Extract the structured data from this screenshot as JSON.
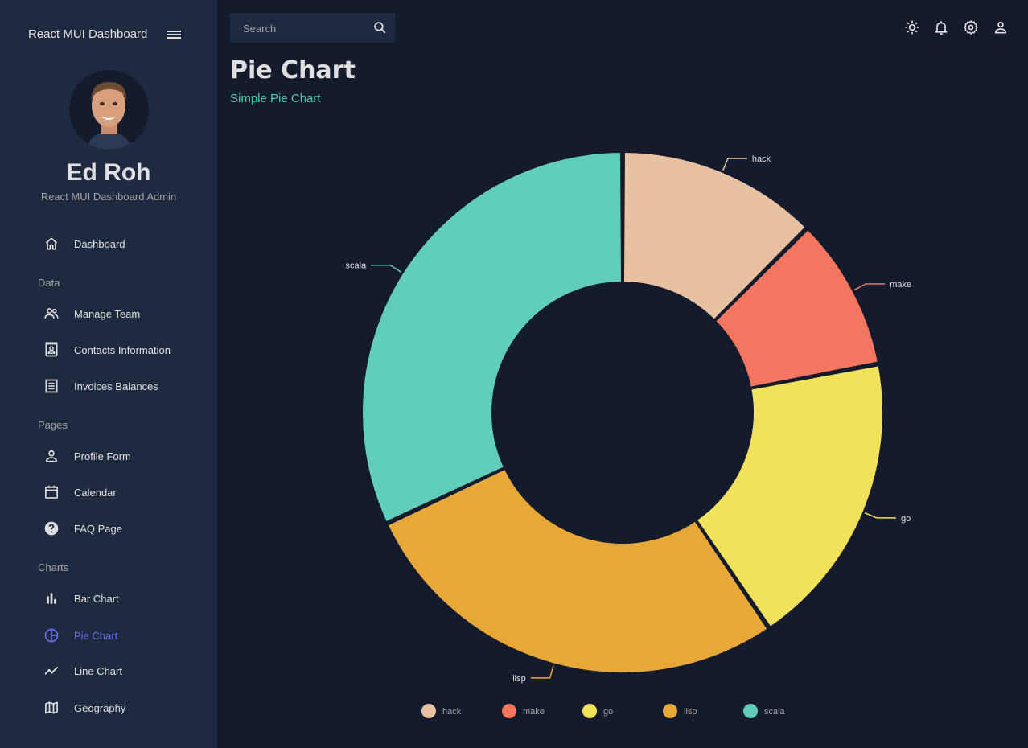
{
  "sidebar": {
    "brand": "React MUI Dashboard",
    "user_name": "Ed Roh",
    "user_role": "React MUI Dashboard Admin",
    "items": [
      {
        "label": "Dashboard",
        "icon": "home-icon"
      },
      {
        "label": "Manage Team",
        "icon": "people-icon"
      },
      {
        "label": "Contacts Information",
        "icon": "contacts-icon"
      },
      {
        "label": "Invoices Balances",
        "icon": "receipt-icon"
      },
      {
        "label": "Profile Form",
        "icon": "person-icon"
      },
      {
        "label": "Calendar",
        "icon": "calendar-icon"
      },
      {
        "label": "FAQ Page",
        "icon": "help-icon"
      },
      {
        "label": "Bar Chart",
        "icon": "bar-chart-icon"
      },
      {
        "label": "Pie Chart",
        "icon": "pie-chart-icon"
      },
      {
        "label": "Line Chart",
        "icon": "timeline-icon"
      },
      {
        "label": "Geography",
        "icon": "map-icon"
      }
    ],
    "sections": [
      "Data",
      "Pages",
      "Charts"
    ],
    "active_item": "Pie Chart"
  },
  "topbar": {
    "search_placeholder": "Search"
  },
  "page": {
    "title": "Pie Chart",
    "subtitle": "Simple Pie Chart"
  },
  "colors": {
    "background": "#141b2d",
    "sidebar": "#1f2a40",
    "accent_green": "#4cceac",
    "active": "#6870fa"
  },
  "chart_data": {
    "type": "pie",
    "categories": [
      "hack",
      "make",
      "go",
      "lisp",
      "scala"
    ],
    "values": [
      12.5,
      9.5,
      18.5,
      27.5,
      32.0
    ],
    "colors": [
      "#e8c1a0",
      "#f47560",
      "#f1e15b",
      "#e8a838",
      "#61cdbb"
    ],
    "legend": [
      "hack",
      "make",
      "go",
      "lisp",
      "scala"
    ],
    "legend_position": "bottom"
  }
}
